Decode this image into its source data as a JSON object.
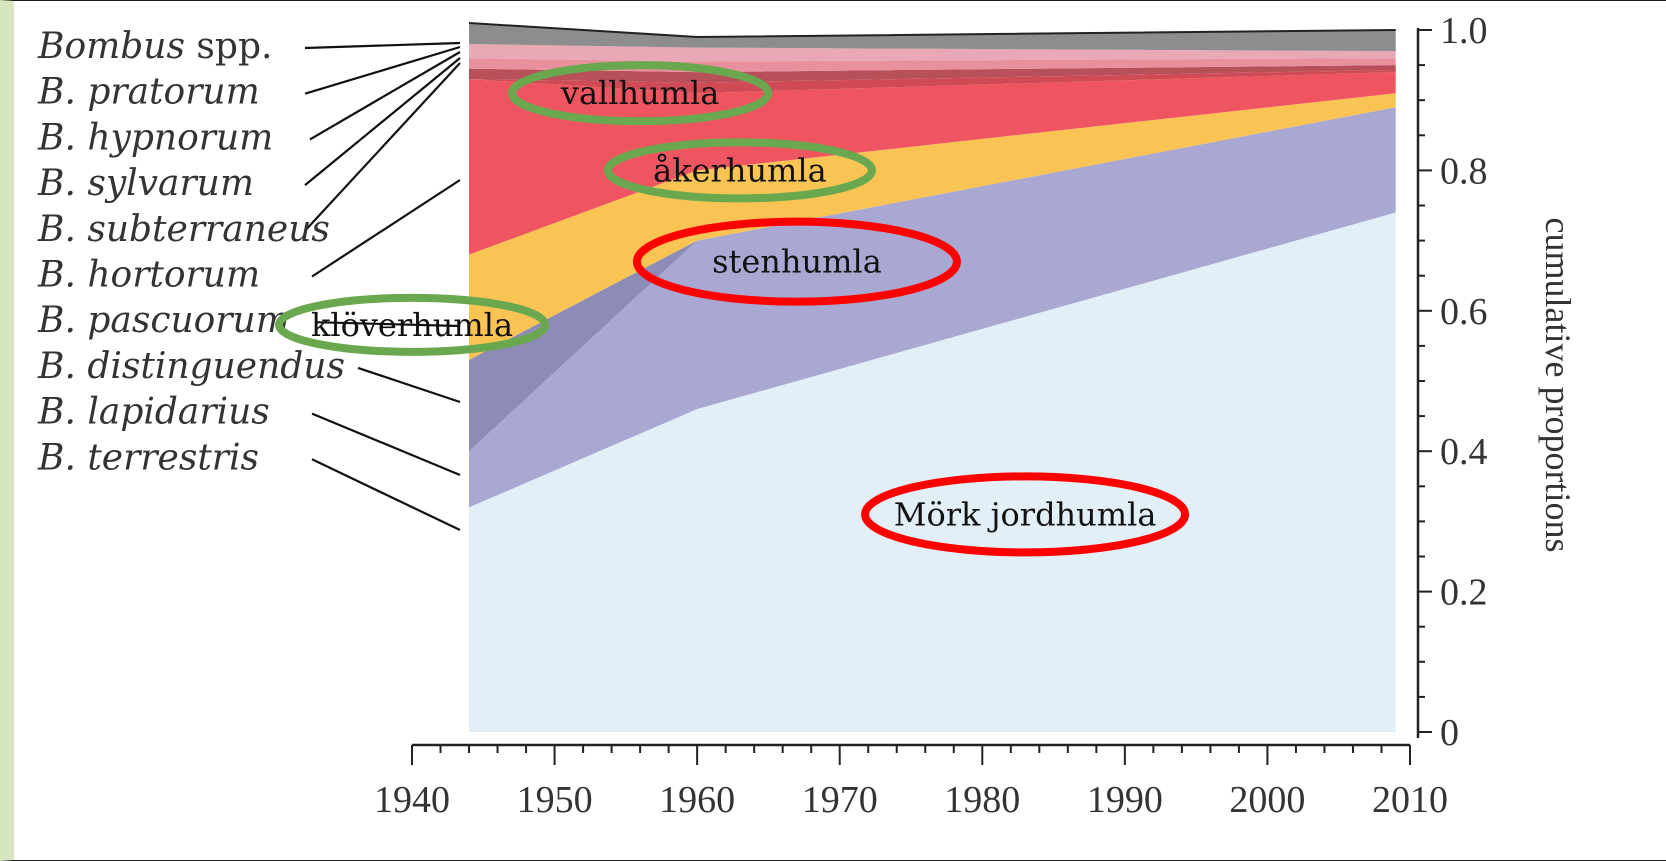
{
  "chart_data": {
    "type": "area",
    "stacked": true,
    "x": [
      1944,
      1960,
      2009
    ],
    "xticks": [
      1940,
      1950,
      1960,
      1970,
      1980,
      1990,
      2000,
      2010
    ],
    "xlim": [
      1940,
      2010
    ],
    "ylim": [
      0,
      1.0
    ],
    "yticks": [
      "0",
      "0.2",
      "0.4",
      "0.6",
      "0.8",
      "1.0"
    ],
    "ylabel": "cumulative proportions",
    "yaxis_position": "right",
    "series": [
      {
        "name": "B. terrestris",
        "label_parts": [
          "B. ",
          "terrestris"
        ],
        "color": "#e3eff6",
        "values": [
          0.32,
          0.46,
          0.74
        ]
      },
      {
        "name": "B. lapidarius",
        "label_parts": [
          "B. ",
          "lapidarius"
        ],
        "color": "#a8a8d2",
        "values": [
          0.08,
          0.24,
          0.15
        ]
      },
      {
        "name": "B. distinguendus",
        "label_parts": [
          "B. ",
          "distinguendus"
        ],
        "color": "#8c8cb6",
        "values": [
          0.13,
          0.0,
          0.0
        ]
      },
      {
        "name": "B. pascuorum",
        "label_parts": [
          "B. ",
          "pascuorum"
        ],
        "color": "#f9c454",
        "values": [
          0.15,
          0.1,
          0.02
        ]
      },
      {
        "name": "B. hortorum",
        "label_parts": [
          "B. ",
          "hortorum"
        ],
        "color": "#ef5560",
        "values": [
          0.25,
          0.11,
          0.03
        ]
      },
      {
        "name": "B. subterraneus",
        "label_parts": [
          "B. ",
          "subterraneus"
        ],
        "color": "#d04a55",
        "values": [
          0.0,
          0.015,
          0.003
        ]
      },
      {
        "name": "B. sylvarum",
        "label_parts": [
          "B. ",
          "sylvarum"
        ],
        "color": "#b8505a",
        "values": [
          0.015,
          0.015,
          0.007
        ]
      },
      {
        "name": "B. hypnorum",
        "label_parts": [
          "B. ",
          "hypnorum"
        ],
        "color": "#e8909e",
        "values": [
          0.015,
          0.015,
          0.01
        ]
      },
      {
        "name": "B. pratorum",
        "label_parts": [
          "B. ",
          "pratorum"
        ],
        "color": "#e9a8b6",
        "values": [
          0.02,
          0.02,
          0.01
        ]
      },
      {
        "name": "Bombus spp.",
        "label_parts": [
          "Bombus",
          " spp."
        ],
        "color": "#8d8d8d",
        "values": [
          0.03,
          0.015,
          0.03
        ]
      }
    ],
    "annotations": [
      {
        "text": "vallhumla",
        "year": 1956,
        "y": 0.91,
        "ring_color": "#6aa84f"
      },
      {
        "text": "åkerhumla",
        "year": 1963,
        "y": 0.8,
        "ring_color": "#6aa84f"
      },
      {
        "text": "stenhumla",
        "year": 1967,
        "y": 0.67,
        "ring_color": "#ff0000"
      },
      {
        "text": "klöverhumla",
        "year": 1940,
        "y": 0.58,
        "ring_color": "#6aa84f"
      },
      {
        "text": "Mörk jordhumla",
        "year": 1983,
        "y": 0.31,
        "ring_color": "#ff0000"
      }
    ]
  }
}
